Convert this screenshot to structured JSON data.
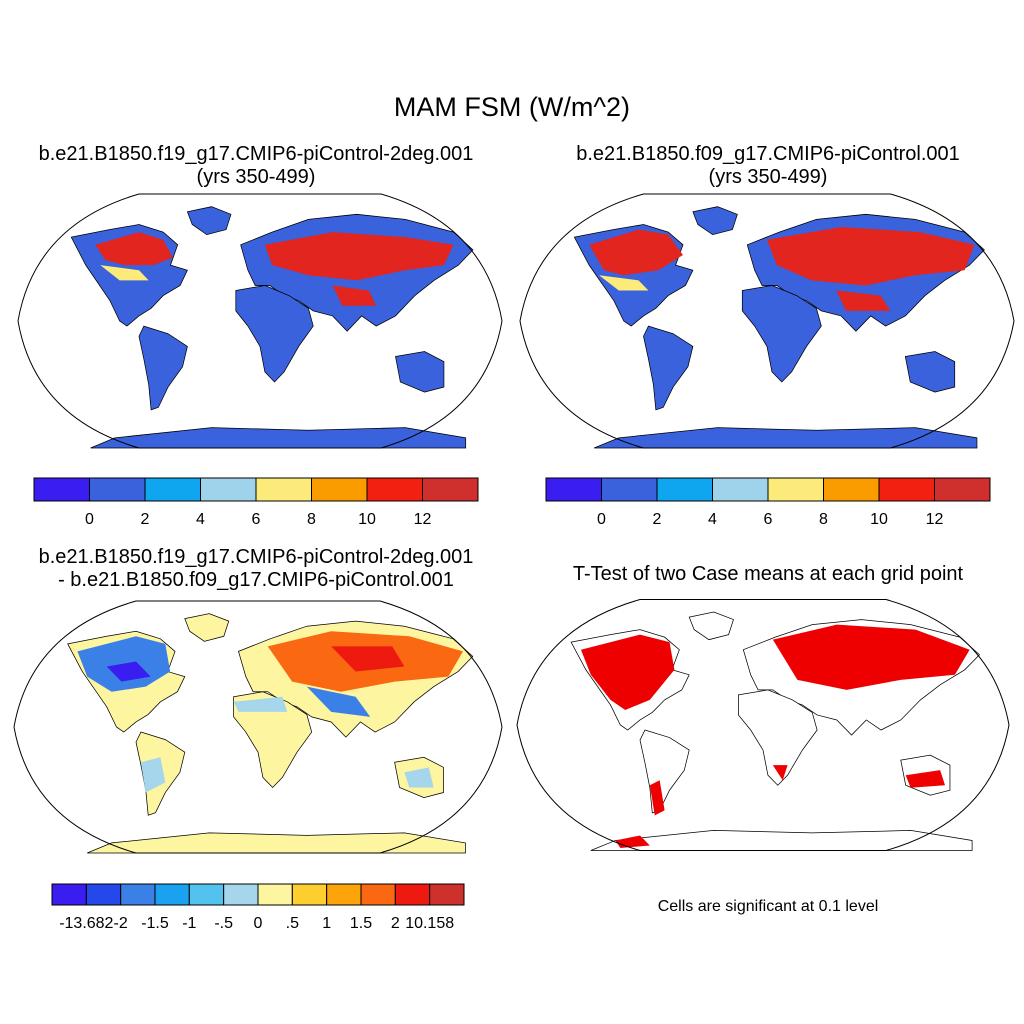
{
  "figure": {
    "title": "MAM FSM (W/m^2)"
  },
  "panels": [
    {
      "id": "case1",
      "title_line1": "b.e21.B1850.f19_g17.CMIP6-piControl-2deg.001",
      "title_line2": "(yrs 350-499)",
      "colorbar": {
        "colors": [
          "#3a1df0",
          "#3a62dc",
          "#10a6ef",
          "#9fd3ec",
          "#fceb7a",
          "#fa9b00",
          "#f22010",
          "#d0302d"
        ],
        "tick_labels": [
          "0",
          "2",
          "4",
          "6",
          "8",
          "10",
          "12"
        ]
      }
    },
    {
      "id": "case2",
      "title_line1": "b.e21.B1850.f09_g17.CMIP6-piControl.001",
      "title_line2": "(yrs 350-499)",
      "colorbar": {
        "colors": [
          "#3a1df0",
          "#3a62dc",
          "#10a6ef",
          "#9fd3ec",
          "#fceb7a",
          "#fa9b00",
          "#f22010",
          "#d0302d"
        ],
        "tick_labels": [
          "0",
          "2",
          "4",
          "6",
          "8",
          "10",
          "12"
        ]
      }
    },
    {
      "id": "difference",
      "title_line1": "b.e21.B1850.f19_g17.CMIP6-piControl-2deg.001",
      "title_line2": "- b.e21.B1850.f09_g17.CMIP6-piControl.001",
      "colorbar": {
        "colors": [
          "#3a1df0",
          "#2448ea",
          "#3a80e6",
          "#1aa2f0",
          "#52c2ee",
          "#a6d6ec",
          "#fdf5a0",
          "#fdce30",
          "#fca40a",
          "#fa6812",
          "#ee1a10",
          "#ce302c"
        ],
        "tick_labels": [
          "-13.682",
          "-2",
          "-1.5",
          "-1",
          "-.5",
          "0",
          ".5",
          "1",
          "1.5",
          "2",
          "10.158"
        ]
      }
    },
    {
      "id": "ttest",
      "title_line1": "T-Test of two Case means at each grid point",
      "note": "Cells are significant at 0.1 level",
      "significant_color": "#ee0000"
    }
  ]
}
